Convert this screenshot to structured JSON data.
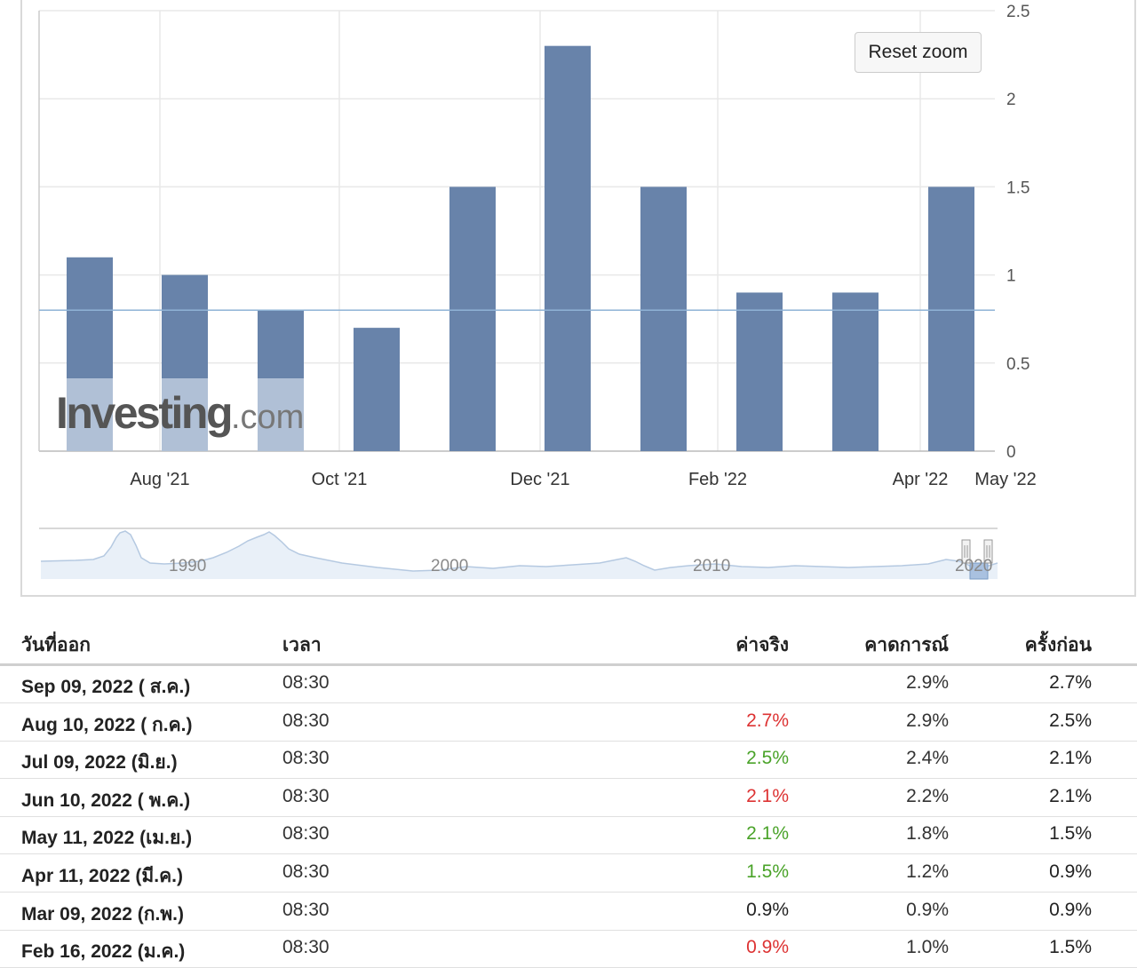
{
  "chart": {
    "reset_zoom_label": "Reset zoom",
    "watermark": {
      "main": "Investing",
      "suffix": ".com"
    },
    "colors": {
      "bar": "#6883aa",
      "bar_faded": "#b0c0d6",
      "reference_line": "#8fb3d6",
      "grid": "#e8e8e8",
      "navigator_line": "#b5c9e1",
      "navigator_fill": "#e9f0f8"
    }
  },
  "chart_data": {
    "type": "bar",
    "categories": [
      "Jul '21",
      "Aug '21",
      "Sep '21",
      "Oct '21",
      "Nov '21",
      "Dec '21",
      "Jan '22",
      "Feb '22",
      "Mar '22",
      "Apr '22"
    ],
    "values": [
      1.1,
      1.0,
      0.8,
      0.7,
      1.5,
      2.3,
      1.5,
      0.9,
      0.9,
      1.5
    ],
    "x_tick_labels": [
      "Aug '21",
      "Oct '21",
      "Dec '21",
      "Feb '22",
      "Apr '22",
      "May '22"
    ],
    "y_tick_labels": [
      "0",
      "0.5",
      "1",
      "1.5",
      "2",
      "2.5"
    ],
    "ylim": [
      0,
      2.5
    ],
    "reference_line": 0.8,
    "grid": true,
    "y_axis_position": "right",
    "title": "",
    "xlabel": "",
    "ylabel": "",
    "navigator": {
      "tick_labels": [
        "1990",
        "2000",
        "2010",
        "2020"
      ]
    }
  },
  "table": {
    "headers": {
      "date": "วันที่ออก",
      "time": "เวลา",
      "actual": "ค่าจริง",
      "forecast": "คาดการณ์",
      "previous": "ครั้งก่อน"
    },
    "rows": [
      {
        "date": "Sep 09, 2022 ( ส.ค.)",
        "time": "08:30",
        "actual": "",
        "actual_color": "#222222",
        "forecast": "2.9%",
        "previous": "2.7%"
      },
      {
        "date": "Aug 10, 2022 ( ก.ค.)",
        "time": "08:30",
        "actual": "2.7%",
        "actual_color": "#dd3333",
        "forecast": "2.9%",
        "previous": "2.5%"
      },
      {
        "date": "Jul 09, 2022 (มิ.ย.)",
        "time": "08:30",
        "actual": "2.5%",
        "actual_color": "#4aa329",
        "forecast": "2.4%",
        "previous": "2.1%"
      },
      {
        "date": "Jun 10, 2022 ( พ.ค.)",
        "time": "08:30",
        "actual": "2.1%",
        "actual_color": "#dd3333",
        "forecast": "2.2%",
        "previous": "2.1%"
      },
      {
        "date": "May 11, 2022 (เม.ย.)",
        "time": "08:30",
        "actual": "2.1%",
        "actual_color": "#4aa329",
        "forecast": "1.8%",
        "previous": "1.5%"
      },
      {
        "date": "Apr 11, 2022 (มี.ค.)",
        "time": "08:30",
        "actual": "1.5%",
        "actual_color": "#4aa329",
        "forecast": "1.2%",
        "previous": "0.9%"
      },
      {
        "date": "Mar 09, 2022 (ก.พ.)",
        "time": "08:30",
        "actual": "0.9%",
        "actual_color": "#222222",
        "forecast": "0.9%",
        "previous": "0.9%"
      },
      {
        "date": "Feb 16, 2022 (ม.ค.)",
        "time": "08:30",
        "actual": "0.9%",
        "actual_color": "#dd3333",
        "forecast": "1.0%",
        "previous": "1.5%"
      }
    ]
  }
}
